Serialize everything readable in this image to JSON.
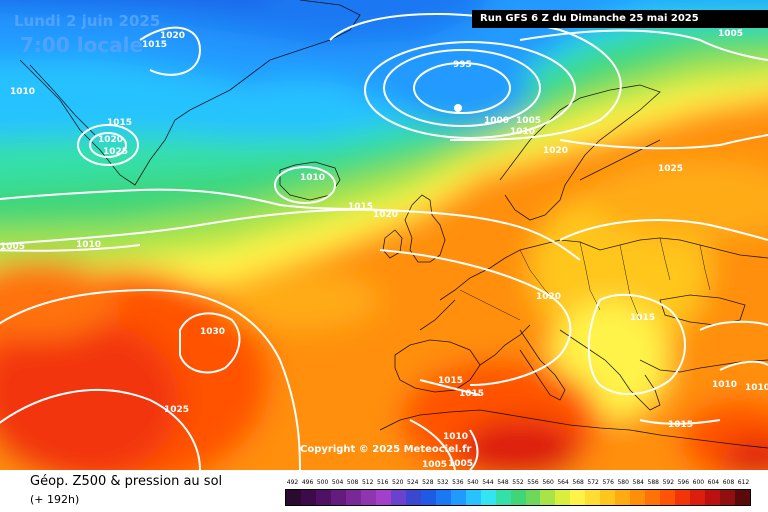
{
  "header": {
    "date": "Lundi 2 juin 2025",
    "time": "7:00 locale",
    "run": "Run GFS 6 Z du Dimanche 25 mai 2025"
  },
  "copyright": "Copyright © 2025 Meteociel.fr",
  "legend": {
    "title": "Géop. Z500 & pression au sol",
    "subtitle": "(+ 192h)",
    "scale": [
      {
        "value": "492",
        "color": "#2a0a2e"
      },
      {
        "value": "496",
        "color": "#3d0a4a"
      },
      {
        "value": "500",
        "color": "#4f1164"
      },
      {
        "value": "504",
        "color": "#631b7d"
      },
      {
        "value": "508",
        "color": "#7a2898"
      },
      {
        "value": "512",
        "color": "#9035b0"
      },
      {
        "value": "516",
        "color": "#a43fc9"
      },
      {
        "value": "520",
        "color": "#6c41cc"
      },
      {
        "value": "524",
        "color": "#3b46d1"
      },
      {
        "value": "528",
        "color": "#1f5ae4"
      },
      {
        "value": "532",
        "color": "#1a78f2"
      },
      {
        "value": "536",
        "color": "#209aff"
      },
      {
        "value": "540",
        "color": "#27c2ff"
      },
      {
        "value": "544",
        "color": "#32e5f2"
      },
      {
        "value": "548",
        "color": "#35e0a8"
      },
      {
        "value": "552",
        "color": "#3ed677"
      },
      {
        "value": "556",
        "color": "#6ed85c"
      },
      {
        "value": "560",
        "color": "#a7e448"
      },
      {
        "value": "564",
        "color": "#d8ef3e"
      },
      {
        "value": "568",
        "color": "#fff34a"
      },
      {
        "value": "572",
        "color": "#ffdd33"
      },
      {
        "value": "576",
        "color": "#ffc61f"
      },
      {
        "value": "580",
        "color": "#ffab12"
      },
      {
        "value": "584",
        "color": "#ff8f0b"
      },
      {
        "value": "588",
        "color": "#ff7208"
      },
      {
        "value": "592",
        "color": "#ff5306"
      },
      {
        "value": "596",
        "color": "#f23508"
      },
      {
        "value": "600",
        "color": "#dc1e0c"
      },
      {
        "value": "604",
        "color": "#bd1010"
      },
      {
        "value": "608",
        "color": "#901010"
      },
      {
        "value": "612",
        "color": "#5a0a0a"
      }
    ]
  },
  "isobars": {
    "labels": [
      {
        "id": "l1",
        "text": "1020"
      },
      {
        "id": "l2",
        "text": "1015"
      },
      {
        "id": "l3",
        "text": "1010"
      },
      {
        "id": "l4",
        "text": "1015"
      },
      {
        "id": "l5",
        "text": "1020"
      },
      {
        "id": "l6",
        "text": "1025"
      },
      {
        "id": "l7",
        "text": "995"
      },
      {
        "id": "l8",
        "text": "1000"
      },
      {
        "id": "l9",
        "text": "1005"
      },
      {
        "id": "l10",
        "text": "1010"
      },
      {
        "id": "l11",
        "text": "1005"
      },
      {
        "id": "l12",
        "text": "1020"
      },
      {
        "id": "l13",
        "text": "1010"
      },
      {
        "id": "l14",
        "text": "1015"
      },
      {
        "id": "l15",
        "text": "1020"
      },
      {
        "id": "l16",
        "text": "1025"
      },
      {
        "id": "l17",
        "text": "1005"
      },
      {
        "id": "l18",
        "text": "1010"
      },
      {
        "id": "l19",
        "text": "1030"
      },
      {
        "id": "l20",
        "text": "1020"
      },
      {
        "id": "l21",
        "text": "1015"
      },
      {
        "id": "l22",
        "text": "1015"
      },
      {
        "id": "l23",
        "text": "1015"
      },
      {
        "id": "l24",
        "text": "1025"
      },
      {
        "id": "l25",
        "text": "1010"
      },
      {
        "id": "l26",
        "text": "1010"
      },
      {
        "id": "l27",
        "text": "1010"
      },
      {
        "id": "l28",
        "text": "1015"
      },
      {
        "id": "l29",
        "text": "1005"
      },
      {
        "id": "l30",
        "text": "1005"
      }
    ]
  }
}
